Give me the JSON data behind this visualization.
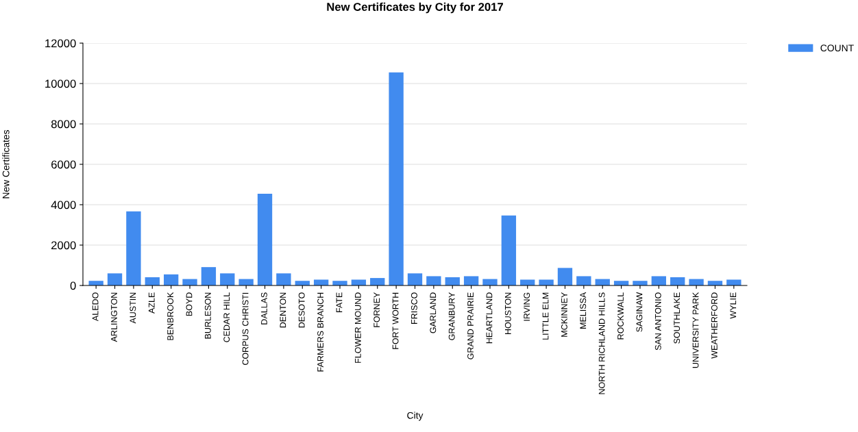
{
  "chart_data": {
    "type": "bar",
    "title": "New Certificates by City for 2017",
    "xlabel": "City",
    "ylabel": "New Certificates",
    "categories": [
      "ALEDO",
      "ARLINGTON",
      "AUSTIN",
      "AZLE",
      "BENBROOK",
      "BOYD",
      "BURLESON",
      "CEDAR HILL",
      "CORPUS CHRISTI",
      "DALLAS",
      "DENTON",
      "DESOTO",
      "FARMERS BRANCH",
      "FATE",
      "FLOWER MOUND",
      "FORNEY",
      "FORT WORTH",
      "FRISCO",
      "GARLAND",
      "GRANBURY",
      "GRAND PRAIRIE",
      "HEARTLAND",
      "HOUSTON",
      "IRVING",
      "LITTLE ELM",
      "MCKINNEY",
      "MELISSA",
      "NORTH RICHLAND HILLS",
      "ROCKWALL",
      "SAGINAW",
      "SAN ANTONIO",
      "SOUTHLAKE",
      "UNIVERSITY PARK",
      "WEATHERFORD",
      "WYLIE"
    ],
    "series": [
      {
        "name": "COUNT",
        "color": "#418bef",
        "values": [
          230,
          600,
          3670,
          410,
          550,
          320,
          910,
          600,
          320,
          4540,
          600,
          230,
          290,
          230,
          290,
          370,
          10550,
          600,
          460,
          410,
          460,
          320,
          3470,
          290,
          290,
          870,
          460,
          320,
          230,
          230,
          460,
          410,
          320,
          230,
          290
        ]
      }
    ],
    "ylim": [
      0,
      12000
    ],
    "yticks": [
      0,
      2000,
      4000,
      6000,
      8000,
      10000,
      12000
    ],
    "grid": "y",
    "legend": "top right"
  }
}
